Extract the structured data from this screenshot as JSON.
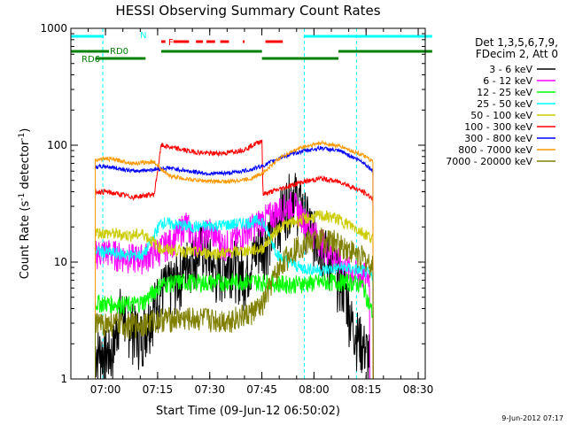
{
  "chart_data": {
    "type": "line",
    "title": "HESSI Observing Summary Count Rates",
    "xlabel": "Start Time (09-Jun-12 06:50:02)",
    "ylabel": "Count Rate (s",
    "ylabel_sup": "-1",
    "ylabel_mid": " detector",
    "ylabel_end": ")",
    "yscale": "log",
    "ylim": [
      1,
      1000
    ],
    "xlim_minutes": [
      0,
      102
    ],
    "x_ticks": [
      {
        "label": "07:00",
        "minute": 9.97
      },
      {
        "label": "07:15",
        "minute": 24.97
      },
      {
        "label": "07:30",
        "minute": 39.97
      },
      {
        "label": "07:45",
        "minute": 54.97
      },
      {
        "label": "08:00",
        "minute": 69.97
      },
      {
        "label": "08:15",
        "minute": 84.97
      },
      {
        "label": "08:30",
        "minute": 99.97
      }
    ],
    "y_ticks": [
      {
        "label": "1",
        "value": 1
      },
      {
        "label": "10",
        "value": 10
      },
      {
        "label": "100",
        "value": 100
      },
      {
        "label": "1000",
        "value": 1000
      }
    ],
    "legend_title": [
      "Det 1,3,5,6,7,9,",
      "FDecim 2, Att 0"
    ],
    "legend_position": "right",
    "series": [
      {
        "name": "3 - 6 keV",
        "color": "#000000",
        "points": [
          [
            7,
            1.8
          ],
          [
            12,
            1.7
          ],
          [
            14,
            4
          ],
          [
            20,
            2.4
          ],
          [
            26,
            6
          ],
          [
            30,
            7
          ],
          [
            34,
            11
          ],
          [
            38,
            14
          ],
          [
            42,
            8
          ],
          [
            46,
            11
          ],
          [
            50,
            8
          ],
          [
            54,
            14
          ],
          [
            58,
            18
          ],
          [
            61,
            30
          ],
          [
            64,
            42
          ],
          [
            67,
            28
          ],
          [
            70,
            18
          ],
          [
            73,
            13
          ],
          [
            76,
            9
          ],
          [
            79,
            6
          ],
          [
            81,
            3
          ],
          [
            86,
            1.6
          ]
        ]
      },
      {
        "name": "6 - 12 keV",
        "color": "#ff00ff",
        "points": [
          [
            7,
            12
          ],
          [
            10,
            12.5
          ],
          [
            14,
            11.5
          ],
          [
            18,
            11
          ],
          [
            20,
            11
          ],
          [
            24,
            12
          ],
          [
            27,
            14
          ],
          [
            30,
            16
          ],
          [
            33,
            22
          ],
          [
            36,
            15
          ],
          [
            40,
            19
          ],
          [
            44,
            14
          ],
          [
            48,
            16
          ],
          [
            52,
            20
          ],
          [
            56,
            24
          ],
          [
            60,
            28
          ],
          [
            64,
            32
          ],
          [
            67,
            24
          ],
          [
            70,
            18
          ],
          [
            73,
            14
          ],
          [
            76,
            11
          ],
          [
            79,
            9
          ],
          [
            82,
            8
          ],
          [
            86,
            7.5
          ]
        ]
      },
      {
        "name": "12 - 25 keV",
        "color": "#00ff00",
        "points": [
          [
            7,
            4.5
          ],
          [
            12,
            4.4
          ],
          [
            17,
            4.3
          ],
          [
            21,
            4.6
          ],
          [
            26,
            6.5
          ],
          [
            32,
            6.8
          ],
          [
            38,
            6.7
          ],
          [
            44,
            6.8
          ],
          [
            50,
            6.9
          ],
          [
            56,
            6.8
          ],
          [
            62,
            6.5
          ],
          [
            68,
            6.6
          ],
          [
            74,
            6.8
          ],
          [
            80,
            6.8
          ],
          [
            84,
            6.4
          ],
          [
            87,
            3.5
          ]
        ]
      },
      {
        "name": "25 - 50 keV",
        "color": "#00ffff",
        "points": [
          [
            7,
            12.5
          ],
          [
            12,
            12
          ],
          [
            17,
            11.5
          ],
          [
            21,
            11.5
          ],
          [
            26,
            22
          ],
          [
            30,
            21
          ],
          [
            35,
            20
          ],
          [
            40,
            20.5
          ],
          [
            46,
            21
          ],
          [
            52,
            22
          ],
          [
            55,
            23
          ],
          [
            60,
            11
          ],
          [
            66,
            9
          ],
          [
            72,
            8.5
          ],
          [
            78,
            9
          ],
          [
            84,
            8.5
          ],
          [
            87,
            7.5
          ]
        ]
      },
      {
        "name": "50 - 100 keV",
        "color": "#cccc00",
        "points": [
          [
            7,
            18
          ],
          [
            12,
            17.5
          ],
          [
            17,
            17
          ],
          [
            21,
            17.5
          ],
          [
            26,
            13
          ],
          [
            32,
            12.5
          ],
          [
            38,
            12
          ],
          [
            44,
            12
          ],
          [
            50,
            12.5
          ],
          [
            55,
            13
          ],
          [
            60,
            20
          ],
          [
            66,
            23
          ],
          [
            72,
            25
          ],
          [
            76,
            24
          ],
          [
            80,
            21
          ],
          [
            84,
            18
          ],
          [
            87,
            16
          ]
        ]
      },
      {
        "name": "100 - 300 keV",
        "color": "#ff0000",
        "points": [
          [
            7,
            40
          ],
          [
            10,
            40
          ],
          [
            14,
            38
          ],
          [
            18,
            36
          ],
          [
            21,
            37
          ],
          [
            24,
            38
          ],
          [
            26,
            100
          ],
          [
            30,
            94
          ],
          [
            35,
            88
          ],
          [
            40,
            85
          ],
          [
            45,
            86
          ],
          [
            50,
            92
          ],
          [
            55,
            110
          ],
          [
            55.3,
            38
          ],
          [
            60,
            42
          ],
          [
            66,
            48
          ],
          [
            72,
            52
          ],
          [
            78,
            48
          ],
          [
            84,
            40
          ],
          [
            87,
            35
          ]
        ]
      },
      {
        "name": "300 - 800 keV",
        "color": "#0000ff",
        "points": [
          [
            7,
            65
          ],
          [
            10,
            66
          ],
          [
            14,
            63
          ],
          [
            18,
            60
          ],
          [
            21,
            61
          ],
          [
            24,
            62
          ],
          [
            28,
            64
          ],
          [
            34,
            60
          ],
          [
            40,
            57
          ],
          [
            46,
            58
          ],
          [
            52,
            62
          ],
          [
            56,
            68
          ],
          [
            60,
            78
          ],
          [
            66,
            88
          ],
          [
            72,
            95
          ],
          [
            78,
            88
          ],
          [
            84,
            72
          ],
          [
            87,
            60
          ]
        ]
      },
      {
        "name": "800 - 7000 keV",
        "color": "#ff9900",
        "points": [
          [
            7,
            75
          ],
          [
            10,
            77
          ],
          [
            14,
            74
          ],
          [
            18,
            70
          ],
          [
            21,
            71
          ],
          [
            24,
            72
          ],
          [
            28,
            55
          ],
          [
            34,
            51
          ],
          [
            40,
            49
          ],
          [
            46,
            49
          ],
          [
            52,
            52
          ],
          [
            56,
            60
          ],
          [
            60,
            78
          ],
          [
            66,
            95
          ],
          [
            72,
            105
          ],
          [
            78,
            97
          ],
          [
            84,
            82
          ],
          [
            87,
            72
          ]
        ]
      },
      {
        "name": "7000 - 20000 keV",
        "color": "#808000",
        "points": [
          [
            7,
            3
          ],
          [
            12,
            3
          ],
          [
            17,
            2.9
          ],
          [
            21,
            3
          ],
          [
            26,
            3.3
          ],
          [
            32,
            3.3
          ],
          [
            38,
            3.3
          ],
          [
            44,
            3.2
          ],
          [
            50,
            3.5
          ],
          [
            55,
            4.2
          ],
          [
            58,
            7
          ],
          [
            61,
            10
          ],
          [
            64,
            13
          ],
          [
            68,
            15
          ],
          [
            72,
            16
          ],
          [
            76,
            15
          ],
          [
            80,
            13
          ],
          [
            84,
            11
          ],
          [
            87,
            9
          ]
        ]
      }
    ],
    "flags": {
      "N": {
        "label": "N",
        "color": "#00ffff",
        "segments": [
          [
            0,
            9.5
          ],
          [
            67,
            104
          ]
        ]
      },
      "F": {
        "label": "F",
        "color": "#ff0000",
        "segments": [
          [
            26,
            27.2
          ],
          [
            29.5,
            34
          ],
          [
            36,
            38
          ],
          [
            39,
            41.5
          ],
          [
            43,
            45.5
          ],
          [
            49.5,
            50
          ],
          [
            56,
            61
          ]
        ]
      },
      "RD0": {
        "label": "RD0",
        "color": "#008000",
        "segments": [
          [
            0,
            11
          ],
          [
            26,
            55
          ],
          [
            77,
            104
          ]
        ]
      },
      "RD6": {
        "label": "RD6",
        "color": "#008000",
        "segments": [
          [
            7.2,
            21.5
          ],
          [
            55,
            77
          ]
        ]
      }
    },
    "cyan_lines_minutes": [
      0,
      9.2,
      67.2,
      82.2
    ],
    "data_gap_minutes": [
      [
        0,
        7
      ],
      [
        87,
        102
      ]
    ],
    "grid": false
  },
  "footer": {
    "timestamp": "9-Jun-2012 07:17"
  }
}
